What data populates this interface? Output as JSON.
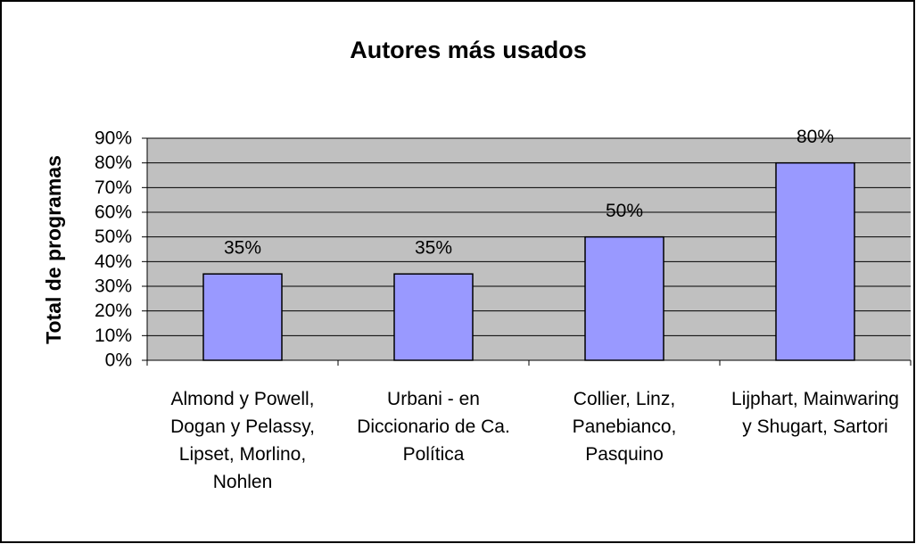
{
  "chart_data": {
    "type": "bar",
    "title": "Autores más usados",
    "y_label": "Total de programas",
    "categories": [
      "Almond y Powell, Dogan y Pelassy, Lipset, Morlino, Nohlen",
      "Urbani - en Diccionario de Ca. Política",
      "Collier, Linz, Panebianco, Pasquino",
      "Lijphart, Mainwaring y Shugart, Sartori"
    ],
    "values": [
      35,
      35,
      50,
      80
    ],
    "value_labels": [
      "35%",
      "35%",
      "50%",
      "80%"
    ],
    "color": "#9999ff",
    "ylim": [
      0,
      90
    ],
    "yticks": [
      {
        "value": 0,
        "label": "0%"
      },
      {
        "value": 10,
        "label": "10%"
      },
      {
        "value": 20,
        "label": "20%"
      },
      {
        "value": 30,
        "label": "30%"
      },
      {
        "value": 40,
        "label": "40%"
      },
      {
        "value": 50,
        "label": "50%"
      },
      {
        "value": 60,
        "label": "60%"
      },
      {
        "value": 70,
        "label": "70%"
      },
      {
        "value": 80,
        "label": "80%"
      },
      {
        "value": 90,
        "label": "90%"
      }
    ],
    "grid": true
  }
}
